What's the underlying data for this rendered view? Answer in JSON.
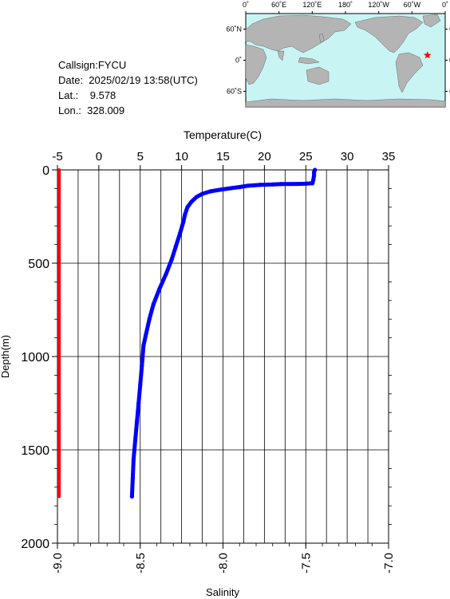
{
  "info": {
    "callsign": "Callsign:FYCU",
    "date": "Date:  2025/02/19 13:58(UTC)",
    "lat": "Lat.:    9.578",
    "lon": "Lon.:  328.009"
  },
  "map": {
    "top_labels": [
      "0˚",
      "60˚E",
      "120˚E",
      "180˚",
      "120˚W",
      "60˚W",
      "0˚"
    ],
    "lat_labels": [
      "60˚N",
      "0˚",
      "60˚S"
    ],
    "ocean_color": "#c8f4f4",
    "land_color": "#b4b4b4",
    "marker_color": "#ff0000",
    "marker": {
      "lon": 328.009,
      "lat": 9.578
    }
  },
  "chart_data": {
    "type": "line",
    "top_axis": {
      "label": "Temperature(C)",
      "range": [
        -5,
        35
      ],
      "ticks": [
        -5,
        0,
        5,
        10,
        15,
        20,
        25,
        30,
        35
      ]
    },
    "bottom_axis": {
      "label": "Salinity",
      "range": [
        -9.0,
        -7.0
      ],
      "ticks": [
        "-9.0",
        "-8.5",
        "-8.0",
        "-7.5",
        "-7.0"
      ]
    },
    "y_axis": {
      "label": "Depth(m)",
      "range": [
        0,
        2000
      ],
      "ticks": [
        0,
        500,
        1000,
        1500,
        2000
      ],
      "inverted": true
    },
    "grid": true,
    "series": [
      {
        "axis": "temperature",
        "color": "#0000ff",
        "points": [
          [
            26.1,
            0
          ],
          [
            26.0,
            12
          ],
          [
            26.0,
            30
          ],
          [
            25.9,
            55
          ],
          [
            25.8,
            72
          ],
          [
            25.0,
            74
          ],
          [
            24.0,
            75
          ],
          [
            22.0,
            76
          ],
          [
            21.0,
            78
          ],
          [
            19.5,
            80
          ],
          [
            18.0,
            85
          ],
          [
            17.0,
            92
          ],
          [
            16.0,
            98
          ],
          [
            14.8,
            105
          ],
          [
            13.5,
            115
          ],
          [
            12.5,
            128
          ],
          [
            11.8,
            145
          ],
          [
            11.2,
            170
          ],
          [
            10.7,
            200
          ],
          [
            10.4,
            240
          ],
          [
            10.2,
            280
          ],
          [
            9.8,
            340
          ],
          [
            9.3,
            410
          ],
          [
            8.8,
            480
          ],
          [
            8.1,
            560
          ],
          [
            7.3,
            640
          ],
          [
            6.6,
            720
          ],
          [
            6.1,
            800
          ],
          [
            5.7,
            880
          ],
          [
            5.4,
            940
          ],
          [
            5.2,
            1050
          ],
          [
            5.0,
            1150
          ],
          [
            4.8,
            1250
          ],
          [
            4.6,
            1350
          ],
          [
            4.4,
            1450
          ],
          [
            4.2,
            1550
          ],
          [
            4.1,
            1650
          ],
          [
            4.0,
            1750
          ]
        ]
      },
      {
        "axis": "salinity",
        "color": "#ff0000",
        "points": [
          [
            -8.99,
            0
          ],
          [
            -8.99,
            1750
          ]
        ]
      }
    ]
  }
}
